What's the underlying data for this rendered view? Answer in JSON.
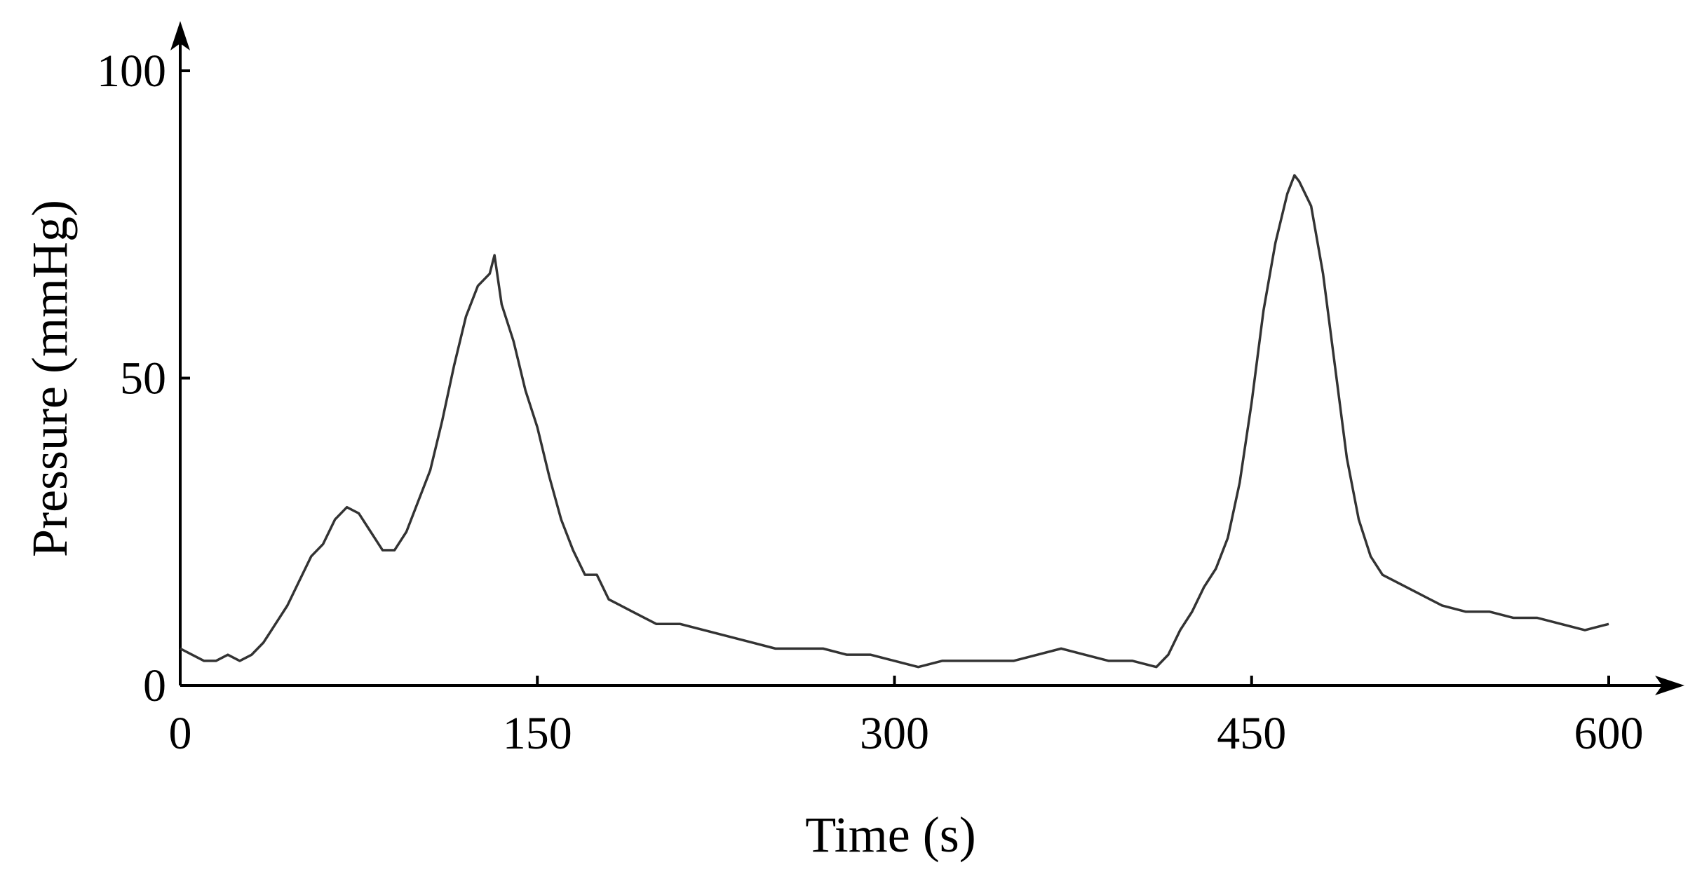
{
  "chart_data": {
    "type": "line",
    "x_label": "Time (s)",
    "y_label": "Pressure (mmHg)",
    "xlim": [
      0,
      600
    ],
    "xticks": [
      0,
      150,
      300,
      450,
      600
    ],
    "ylim": [
      0,
      100
    ],
    "yticks": [
      0,
      50,
      100
    ],
    "x": [
      0,
      5,
      10,
      15,
      20,
      25,
      30,
      35,
      40,
      45,
      50,
      55,
      60,
      65,
      70,
      75,
      80,
      85,
      90,
      95,
      100,
      105,
      110,
      115,
      120,
      125,
      130,
      132,
      135,
      140,
      145,
      150,
      155,
      160,
      165,
      170,
      175,
      180,
      185,
      190,
      195,
      200,
      210,
      220,
      230,
      240,
      250,
      260,
      270,
      280,
      290,
      300,
      310,
      320,
      330,
      340,
      350,
      360,
      370,
      380,
      390,
      400,
      410,
      415,
      420,
      425,
      430,
      435,
      440,
      445,
      450,
      455,
      460,
      465,
      468,
      470,
      475,
      480,
      485,
      490,
      495,
      500,
      505,
      510,
      520,
      530,
      540,
      550,
      560,
      570,
      580,
      590,
      600
    ],
    "series": [
      {
        "color": "#333333",
        "values": [
          6,
          5,
          4,
          4,
          5,
          4,
          5,
          7,
          10,
          13,
          17,
          21,
          23,
          27,
          29,
          28,
          25,
          22,
          22,
          25,
          30,
          35,
          43,
          52,
          60,
          65,
          67,
          70,
          62,
          56,
          48,
          42,
          34,
          27,
          22,
          18,
          18,
          14,
          13,
          12,
          11,
          10,
          10,
          9,
          8,
          7,
          6,
          6,
          6,
          5,
          5,
          4,
          3,
          4,
          4,
          4,
          4,
          5,
          6,
          5,
          4,
          4,
          3,
          5,
          9,
          12,
          16,
          19,
          24,
          33,
          46,
          61,
          72,
          80,
          83,
          82,
          78,
          67,
          52,
          37,
          27,
          21,
          18,
          17,
          15,
          13,
          12,
          12,
          11,
          11,
          10,
          9,
          10
        ]
      }
    ]
  }
}
